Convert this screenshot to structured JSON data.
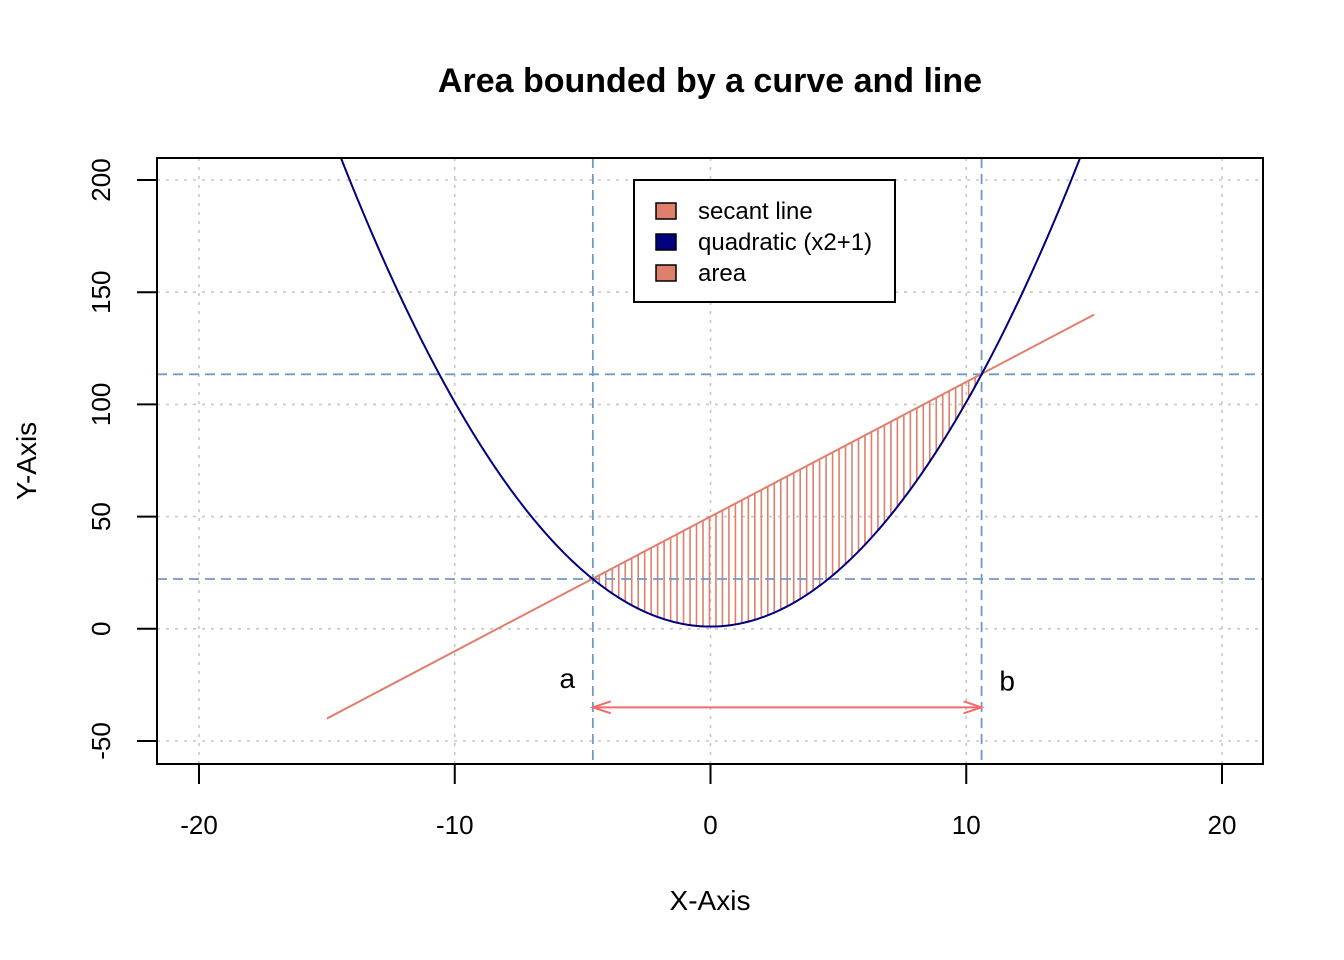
{
  "chart_data": {
    "type": "line",
    "title": "Area bounded by a curve and line",
    "xlabel": "X-Axis",
    "ylabel": "Y-Axis",
    "xlim": [
      -20,
      20
    ],
    "ylim": [
      -50,
      200
    ],
    "xticks": [
      -20,
      -10,
      0,
      10,
      20
    ],
    "yticks": [
      -50,
      0,
      50,
      100,
      150,
      200
    ],
    "xtick_labels": [
      "-20",
      "-10",
      "0",
      "10",
      "20"
    ],
    "ytick_labels": [
      "-50",
      "0",
      "50",
      "100",
      "150",
      "200"
    ],
    "grid": true,
    "legend_position": "top-center",
    "series": [
      {
        "name": "secant line",
        "type": "line",
        "equation": "y = 6x + 50",
        "x_range": [
          -15,
          15
        ],
        "color": "#e07f6b"
      },
      {
        "name": "quadratic (x2+1)",
        "type": "line",
        "equation": "y = x^2 + 1",
        "x_range": [
          -15,
          15
        ],
        "color": "#000080"
      },
      {
        "name": "area",
        "type": "hatched-area",
        "between": [
          "secant line",
          "quadratic (x2+1)"
        ],
        "x_range": [
          -4.6,
          10.6
        ],
        "color": "#e07f6b"
      }
    ],
    "legend": [
      {
        "label": "secant line",
        "color": "#e07f6b"
      },
      {
        "label": "quadratic (x2+1)",
        "color": "#000080"
      },
      {
        "label": "area",
        "color": "#e07f6b"
      }
    ],
    "reference_lines": {
      "vertical_x": [
        -4.6,
        10.6
      ],
      "horizontal_y": [
        22.2,
        113.4
      ],
      "color": "#6f9ac8"
    },
    "annotations": [
      {
        "text": "a",
        "x": -5.6,
        "y": -22
      },
      {
        "text": "b",
        "x": 11.6,
        "y": -23
      }
    ],
    "arrow": {
      "from_x": -4.6,
      "to_x": 10.6,
      "y": -35,
      "color": "#f26b6b",
      "double_headed": true
    }
  }
}
